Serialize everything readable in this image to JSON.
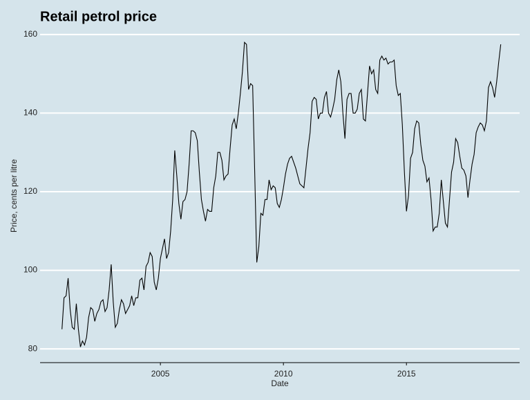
{
  "chart_data": {
    "type": "line",
    "title": "Retail petrol price",
    "x_label": "Date",
    "y_label": "Price, cents per litre",
    "color": "#000000",
    "grid": true,
    "xlim": [
      2000.11,
      2019.6
    ],
    "xticks": [
      2005,
      2010,
      2015
    ],
    "ylim": [
      76.5,
      163.5
    ],
    "yticks": [
      80,
      100,
      120,
      140,
      160
    ],
    "x": [
      2001.0,
      2001.083,
      2001.167,
      2001.25,
      2001.333,
      2001.417,
      2001.5,
      2001.583,
      2001.667,
      2001.75,
      2001.833,
      2001.917,
      2002.0,
      2002.083,
      2002.167,
      2002.25,
      2002.333,
      2002.417,
      2002.5,
      2002.583,
      2002.667,
      2002.75,
      2002.833,
      2002.917,
      2003.0,
      2003.083,
      2003.167,
      2003.25,
      2003.333,
      2003.417,
      2003.5,
      2003.583,
      2003.667,
      2003.75,
      2003.833,
      2003.917,
      2004.0,
      2004.083,
      2004.167,
      2004.25,
      2004.333,
      2004.417,
      2004.5,
      2004.583,
      2004.667,
      2004.75,
      2004.833,
      2004.917,
      2005.0,
      2005.083,
      2005.167,
      2005.25,
      2005.333,
      2005.417,
      2005.5,
      2005.583,
      2005.667,
      2005.75,
      2005.833,
      2005.917,
      2006.0,
      2006.083,
      2006.167,
      2006.25,
      2006.333,
      2006.417,
      2006.5,
      2006.583,
      2006.667,
      2006.75,
      2006.833,
      2006.917,
      2007.0,
      2007.083,
      2007.167,
      2007.25,
      2007.333,
      2007.417,
      2007.5,
      2007.583,
      2007.667,
      2007.75,
      2007.833,
      2007.917,
      2008.0,
      2008.083,
      2008.167,
      2008.25,
      2008.333,
      2008.417,
      2008.5,
      2008.583,
      2008.667,
      2008.75,
      2008.833,
      2008.917,
      2009.0,
      2009.083,
      2009.167,
      2009.25,
      2009.333,
      2009.417,
      2009.5,
      2009.583,
      2009.667,
      2009.75,
      2009.833,
      2009.917,
      2010.0,
      2010.083,
      2010.167,
      2010.25,
      2010.333,
      2010.417,
      2010.5,
      2010.583,
      2010.667,
      2010.75,
      2010.833,
      2010.917,
      2011.0,
      2011.083,
      2011.167,
      2011.25,
      2011.333,
      2011.417,
      2011.5,
      2011.583,
      2011.667,
      2011.75,
      2011.833,
      2011.917,
      2012.0,
      2012.083,
      2012.167,
      2012.25,
      2012.333,
      2012.417,
      2012.5,
      2012.583,
      2012.667,
      2012.75,
      2012.833,
      2012.917,
      2013.0,
      2013.083,
      2013.167,
      2013.25,
      2013.333,
      2013.417,
      2013.5,
      2013.583,
      2013.667,
      2013.75,
      2013.833,
      2013.917,
      2014.0,
      2014.083,
      2014.167,
      2014.25,
      2014.333,
      2014.417,
      2014.5,
      2014.583,
      2014.667,
      2014.75,
      2014.833,
      2014.917,
      2015.0,
      2015.083,
      2015.167,
      2015.25,
      2015.333,
      2015.417,
      2015.5,
      2015.583,
      2015.667,
      2015.75,
      2015.833,
      2015.917,
      2016.0,
      2016.083,
      2016.167,
      2016.25,
      2016.333,
      2016.417,
      2016.5,
      2016.583,
      2016.667,
      2016.75,
      2016.833,
      2016.917,
      2017.0,
      2017.083,
      2017.167,
      2017.25,
      2017.333,
      2017.417,
      2017.5,
      2017.583,
      2017.667,
      2017.75,
      2017.833,
      2017.917,
      2018.0,
      2018.083,
      2018.167,
      2018.25,
      2018.333,
      2018.417,
      2018.5,
      2018.583,
      2018.667,
      2018.75,
      2018.833
    ],
    "values": [
      85,
      93,
      93.5,
      98,
      90,
      85.5,
      85,
      91.5,
      85,
      80.5,
      82,
      81,
      83,
      88,
      90.5,
      90,
      87,
      89,
      90,
      92,
      92.5,
      89.5,
      90.5,
      95,
      101.5,
      92,
      85.5,
      86.5,
      90,
      92.5,
      91.5,
      89,
      90,
      91,
      93.5,
      91,
      93,
      93,
      97.5,
      98,
      95,
      101,
      102,
      104.5,
      103.5,
      97,
      95,
      98,
      103,
      105.5,
      108,
      103,
      104.5,
      110,
      118,
      130.5,
      124,
      117,
      113,
      117.5,
      118,
      120,
      127,
      135.5,
      135.5,
      135,
      133,
      125,
      118,
      115,
      112.5,
      115.5,
      115,
      115,
      121,
      124,
      130,
      130,
      128,
      123,
      124,
      124.5,
      131,
      137,
      138.5,
      136,
      140,
      145,
      150.5,
      158,
      157.5,
      146,
      147.5,
      147,
      125,
      102,
      106,
      114.5,
      114,
      118,
      118,
      123,
      120.5,
      121.5,
      121,
      117,
      116,
      118,
      121,
      124.5,
      127,
      128.5,
      129,
      127.5,
      126,
      124,
      122,
      121.5,
      121,
      126,
      131,
      135,
      143,
      144,
      143.5,
      138.5,
      140,
      140,
      144,
      145.5,
      140,
      139,
      141,
      143.5,
      148.5,
      151,
      148,
      140,
      133.5,
      143.5,
      145,
      145,
      140,
      140,
      141,
      145,
      146,
      138.5,
      138,
      145,
      152,
      150,
      151,
      146,
      145,
      153.5,
      154.5,
      153.5,
      154,
      152.5,
      153,
      153,
      153.5,
      147,
      144.5,
      145,
      137,
      125,
      115,
      119,
      128.5,
      130,
      136,
      138,
      137.5,
      132,
      128,
      126.5,
      122.5,
      123.5,
      118,
      110,
      111,
      111,
      114.5,
      123,
      117.5,
      112,
      111,
      118,
      125,
      127.5,
      133.5,
      132.5,
      129,
      126,
      125.5,
      124,
      118.5,
      123,
      127,
      129.5,
      135,
      136.5,
      137.5,
      137,
      135.5,
      138,
      146.5,
      148,
      146.5,
      144,
      148,
      153,
      157.5
    ]
  }
}
